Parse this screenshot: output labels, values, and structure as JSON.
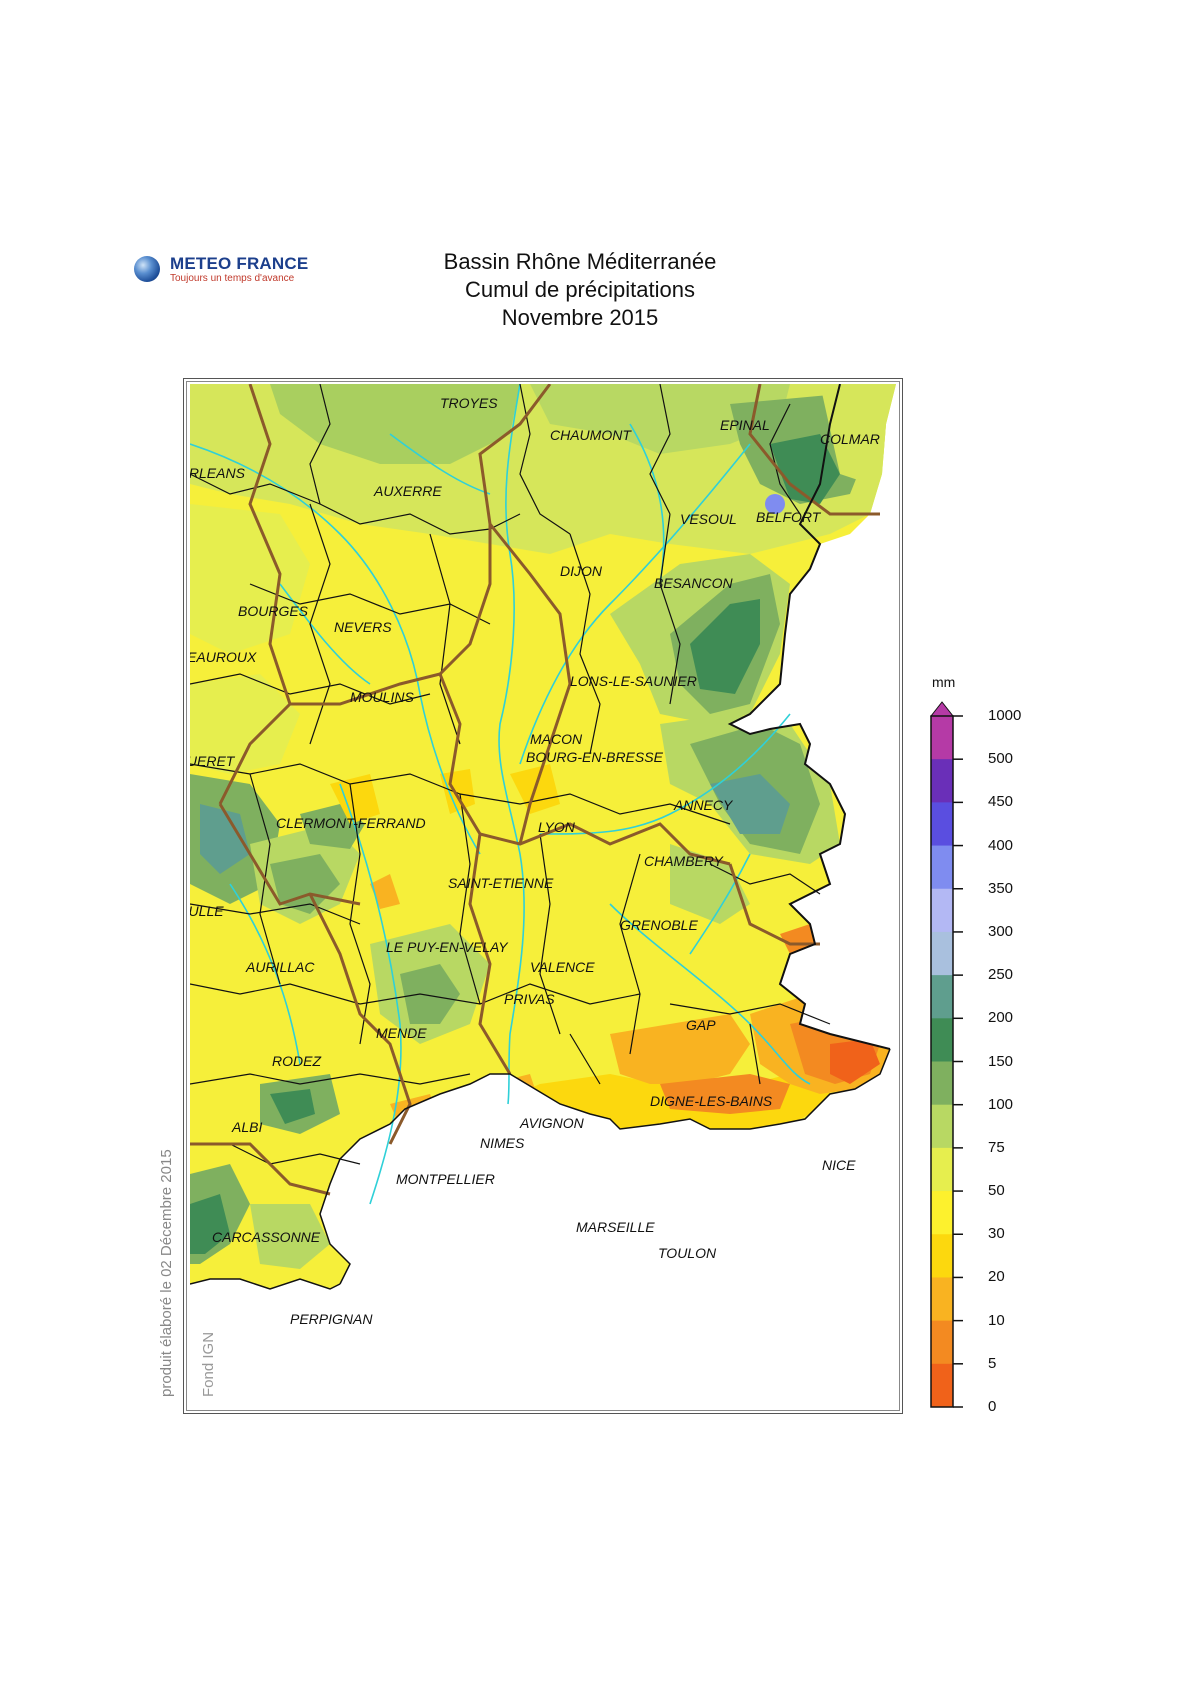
{
  "header": {
    "logo_name": "METEO FRANCE",
    "logo_tagline": "Toujours un temps d'avance",
    "title_line1": "Bassin Rhône Méditerranée",
    "title_line2": "Cumul de précipitations",
    "title_line3": "Novembre 2015"
  },
  "side_text": {
    "credit": "produit élaboré le 02 Décembre 2015",
    "fond": "Fond IGN"
  },
  "legend": {
    "unit": "mm",
    "levels": [
      "1000",
      "500",
      "450",
      "400",
      "350",
      "300",
      "250",
      "200",
      "150",
      "100",
      "75",
      "50",
      "30",
      "20",
      "10",
      "5",
      "0"
    ],
    "colors": [
      "#b53aa6",
      "#6a2fb8",
      "#5a4ee0",
      "#7f8cf0",
      "#b3b8f4",
      "#a9c0de",
      "#5f9e8e",
      "#3f8c55",
      "#7fb05f",
      "#b8d863",
      "#e6ee4e",
      "#fdf12d",
      "#fcd80e",
      "#f9b321",
      "#f38a21",
      "#f0621a"
    ]
  },
  "cities": [
    "TROYES",
    "CHAUMONT",
    "EPINAL",
    "COLMAR",
    "ORLEANS",
    "AUXERRE",
    "VESOUL",
    "BELFORT",
    "DIJON",
    "BESANCON",
    "BOURGES",
    "NEVERS",
    "CHATEAUROUX",
    "LONS-LE-SAUNIER",
    "MOULINS",
    "MACON",
    "BOURG-EN-BRESSE",
    "GUERET",
    "ANNECY",
    "CLERMONT-FERRAND",
    "LYON",
    "CHAMBERY",
    "SAINT-ETIENNE",
    "TULLE",
    "GRENOBLE",
    "LE PUY-EN-VELAY",
    "AURILLAC",
    "VALENCE",
    "PRIVAS",
    "MENDE",
    "GAP",
    "RODEZ",
    "DIGNE-LES-BAINS",
    "ALBI",
    "AVIGNON",
    "NIMES",
    "NICE",
    "MONTPELLIER",
    "MARSEILLE",
    "TOULON",
    "CARCASSONNE",
    "PERPIGNAN"
  ]
}
